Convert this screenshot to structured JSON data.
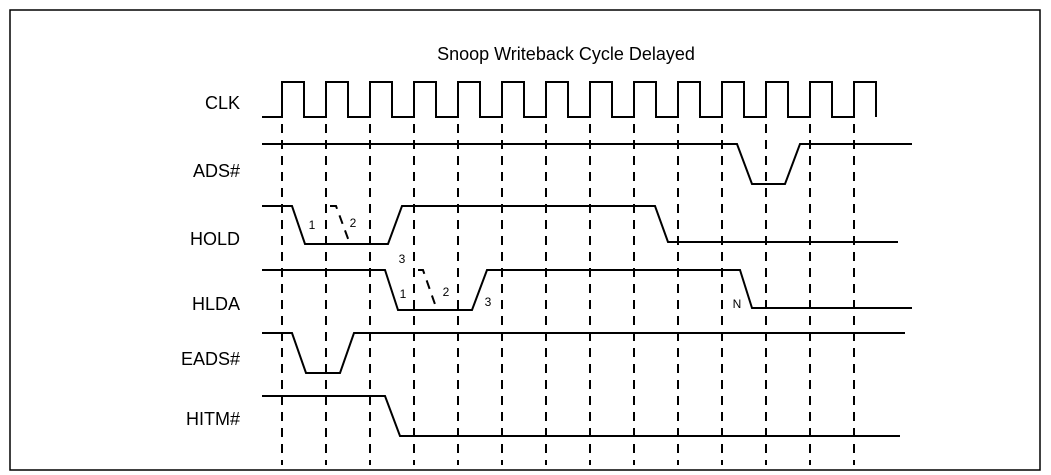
{
  "title": "Snoop Writeback Cycle Delayed",
  "signals": [
    "CLK",
    "ADS#",
    "HOLD",
    "HLDA",
    "EADS#",
    "HITM#"
  ],
  "hold_labels": [
    "1",
    "2",
    "3"
  ],
  "hlda_labels": [
    "1",
    "2",
    "3",
    "N"
  ]
}
